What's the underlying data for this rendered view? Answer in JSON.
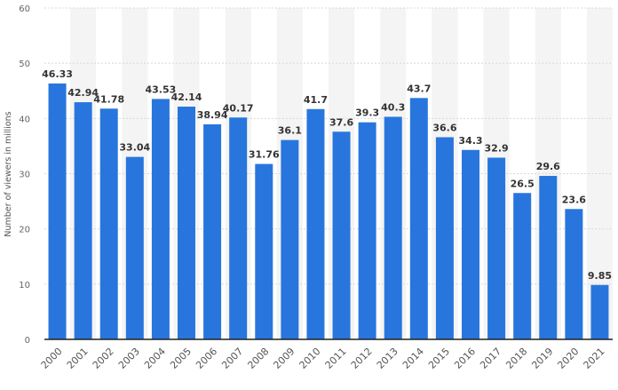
{
  "chart_data": {
    "type": "bar",
    "title": "",
    "xlabel": "",
    "ylabel": "Number of viewers in millions",
    "ylim": [
      0,
      60
    ],
    "yticks": [
      0,
      10,
      20,
      30,
      40,
      50,
      60
    ],
    "grid": true,
    "categories": [
      "2000",
      "2001",
      "2002",
      "2003",
      "2004",
      "2005",
      "2006",
      "2007",
      "2008",
      "2009",
      "2010",
      "2011",
      "2012",
      "2013",
      "2014",
      "2015",
      "2016",
      "2017",
      "2018",
      "2019",
      "2020",
      "2021"
    ],
    "values": [
      46.33,
      42.94,
      41.78,
      33.04,
      43.53,
      42.14,
      38.94,
      40.17,
      31.76,
      36.1,
      41.7,
      37.6,
      39.3,
      40.3,
      43.7,
      36.6,
      34.3,
      32.9,
      26.5,
      29.6,
      23.6,
      9.85
    ],
    "labels": [
      "46.33",
      "42.94",
      "41.78",
      "33.04",
      "43.53",
      "42.14",
      "38.94",
      "40.17",
      "31.76",
      "36.1",
      "41.7",
      "37.6",
      "39.3",
      "40.3",
      "43.7",
      "36.6",
      "34.3",
      "32.9",
      "26.5",
      "29.6",
      "23.6",
      "9.85"
    ],
    "bar_color": "#2876dd"
  }
}
